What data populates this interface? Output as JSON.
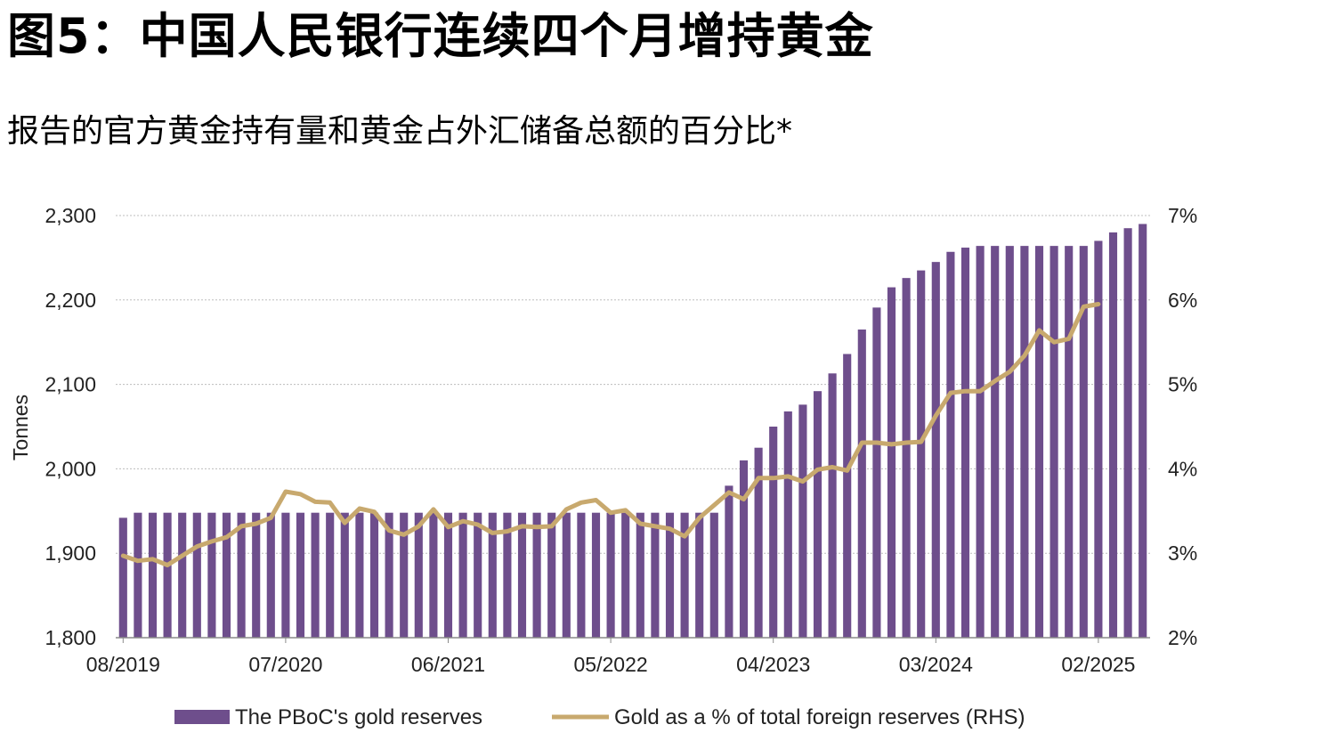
{
  "title": "图5：中国人民银行连续四个月增持黄金",
  "subtitle": "报告的官方黄金持有量和黄金占外汇储备总额的百分比*",
  "chart_data": {
    "type": "bar",
    "ylabel": "Tonnes",
    "ylim": [
      1800,
      2300
    ],
    "yticks": [
      1800,
      1900,
      2000,
      2100,
      2200,
      2300
    ],
    "ytick_labels": [
      "1,800",
      "1,900",
      "2,000",
      "2,100",
      "2,200",
      "2,300"
    ],
    "y2lim": [
      2,
      7
    ],
    "y2ticks": [
      2,
      3,
      4,
      5,
      6,
      7
    ],
    "y2tick_labels": [
      "2%",
      "3%",
      "4%",
      "5%",
      "6%",
      "7%"
    ],
    "x_tick_labels": [
      {
        "index": 0,
        "label": "08/2019"
      },
      {
        "index": 11,
        "label": "07/2020"
      },
      {
        "index": 22,
        "label": "06/2021"
      },
      {
        "index": 33,
        "label": "05/2022"
      },
      {
        "index": 44,
        "label": "04/2023"
      },
      {
        "index": 55,
        "label": "03/2024"
      },
      {
        "index": 66,
        "label": "02/2025"
      }
    ],
    "grid": true,
    "legend_position": "bottom",
    "colors": {
      "bars": "#6e4e8c",
      "line": "#c8a96e",
      "grid": "#bdbdbd"
    },
    "series": [
      {
        "name": "The PBoC's gold reserves",
        "type": "bar",
        "axis": "left",
        "values": [
          1942,
          1948,
          1948,
          1948,
          1948,
          1948,
          1948,
          1948,
          1948,
          1948,
          1948,
          1948,
          1948,
          1948,
          1948,
          1948,
          1948,
          1948,
          1948,
          1948,
          1948,
          1948,
          1948,
          1948,
          1948,
          1948,
          1948,
          1948,
          1948,
          1948,
          1948,
          1948,
          1948,
          1948,
          1948,
          1948,
          1948,
          1948,
          1948,
          1948,
          1948,
          1980,
          2010,
          2025,
          2050,
          2068,
          2076,
          2092,
          2113,
          2136,
          2165,
          2191,
          2215,
          2226,
          2235,
          2245,
          2257,
          2262,
          2264,
          2264,
          2264,
          2264,
          2264,
          2264,
          2264,
          2264,
          2270,
          2280,
          2285,
          2290
        ]
      },
      {
        "name": "Gold as a % of total foreign reserves (RHS)",
        "type": "line",
        "axis": "right",
        "values": [
          2.97,
          2.91,
          2.93,
          2.86,
          2.97,
          3.08,
          3.14,
          3.19,
          3.32,
          3.35,
          3.42,
          3.73,
          3.7,
          3.61,
          3.6,
          3.36,
          3.53,
          3.49,
          3.27,
          3.22,
          3.32,
          3.52,
          3.31,
          3.38,
          3.34,
          3.24,
          3.26,
          3.32,
          3.31,
          3.32,
          3.52,
          3.6,
          3.63,
          3.48,
          3.51,
          3.35,
          3.32,
          3.29,
          3.2,
          3.42,
          3.57,
          3.72,
          3.64,
          3.89,
          3.89,
          3.91,
          3.85,
          3.99,
          4.02,
          3.98,
          4.31,
          4.31,
          4.29,
          4.31,
          4.32,
          4.63,
          4.9,
          4.92,
          4.92,
          5.04,
          5.15,
          5.34,
          5.64,
          5.5,
          5.54,
          5.92,
          5.95
        ]
      }
    ]
  }
}
